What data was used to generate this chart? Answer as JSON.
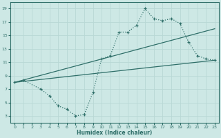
{
  "xlabel": "Humidex (Indice chaleur)",
  "xlim": [
    -0.5,
    23.5
  ],
  "ylim": [
    2,
    20
  ],
  "xticks": [
    0,
    1,
    2,
    3,
    4,
    5,
    6,
    7,
    8,
    9,
    10,
    11,
    12,
    13,
    14,
    15,
    16,
    17,
    18,
    19,
    20,
    21,
    22,
    23
  ],
  "yticks": [
    3,
    5,
    7,
    9,
    11,
    13,
    15,
    17,
    19
  ],
  "bg_color": "#cde8e5",
  "grid_color": "#b8d8d5",
  "line_color": "#2e6e68",
  "curve_x": [
    0,
    1,
    3,
    4,
    5,
    6,
    7,
    8,
    9,
    10,
    11,
    12,
    13,
    14,
    15,
    16,
    17,
    18,
    19,
    20,
    21,
    22,
    23
  ],
  "curve_y": [
    8.0,
    8.3,
    7.0,
    6.0,
    4.5,
    4.0,
    3.0,
    3.2,
    6.5,
    11.5,
    12.0,
    15.5,
    15.5,
    16.5,
    19.0,
    17.5,
    17.2,
    17.5,
    16.8,
    14.0,
    12.0,
    11.5,
    11.3
  ],
  "line1_x": [
    0,
    23
  ],
  "line1_y": [
    8.0,
    16.0
  ],
  "line2_x": [
    0,
    23
  ],
  "line2_y": [
    8.0,
    11.3
  ]
}
